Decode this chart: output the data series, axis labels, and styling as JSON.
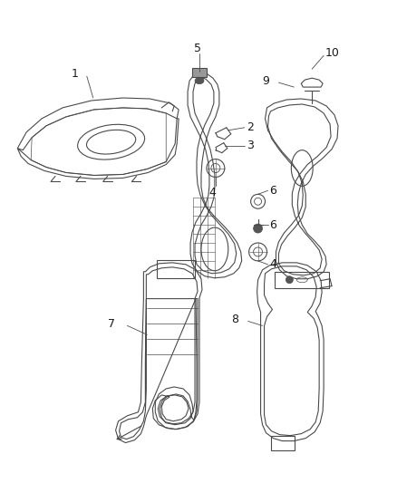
{
  "bg_color": "#ffffff",
  "line_color": "#4a4a4a",
  "label_color": "#1a1a1a",
  "fig_width": 4.38,
  "fig_height": 5.33,
  "dpi": 100,
  "font_size": 8.5
}
